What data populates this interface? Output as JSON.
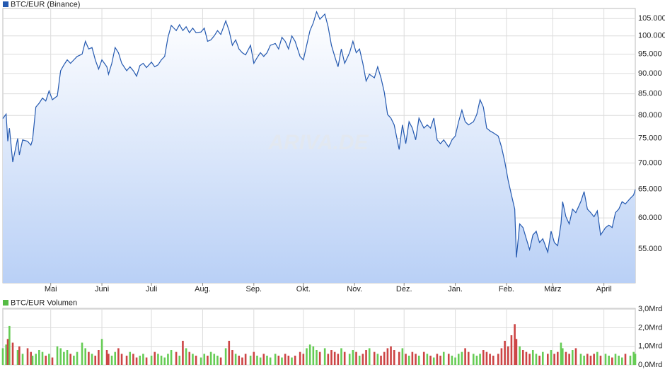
{
  "chart_data": [
    {
      "type": "line",
      "title": "BTC/EUR (Binance)",
      "watermark": "ARIVA.DE",
      "color": "#2459b0",
      "area_color": "#b9d0f6",
      "grid": true,
      "log": true,
      "x": [
        0,
        2,
        3,
        4,
        6,
        9,
        10,
        12,
        15,
        17,
        18,
        20,
        22,
        24,
        26,
        28,
        30,
        33,
        35,
        37,
        39,
        41,
        43,
        45,
        48,
        50,
        52,
        54,
        56,
        58,
        60,
        63,
        64,
        66,
        68,
        70,
        72,
        75,
        77,
        79,
        81,
        83,
        85,
        87,
        90,
        92,
        94,
        96,
        98,
        100,
        102,
        105,
        107,
        109,
        111,
        113,
        115,
        117,
        120,
        122,
        124,
        126,
        128,
        130,
        132,
        135,
        137,
        139,
        141,
        143,
        145,
        147,
        150,
        152,
        154,
        156,
        158,
        160,
        162,
        165,
        167,
        169,
        171,
        173,
        175,
        177,
        180,
        182,
        184,
        186,
        188,
        190,
        192,
        195,
        197,
        199,
        201,
        203,
        205,
        207,
        210,
        212,
        214,
        216,
        218,
        220,
        222,
        225,
        227,
        229,
        231,
        233,
        235,
        237,
        240,
        242,
        244,
        246,
        248,
        250,
        252,
        255,
        257,
        259,
        261,
        263,
        265,
        267,
        270,
        272,
        274,
        276,
        278,
        280,
        282,
        285,
        287,
        289,
        291,
        293,
        295,
        297,
        300,
        302,
        304,
        306,
        308,
        310,
        311,
        313,
        315,
        317,
        319,
        321,
        323,
        325,
        327,
        330,
        332,
        334,
        336,
        338,
        339,
        341,
        343,
        345,
        347,
        350,
        352,
        354,
        356,
        358,
        360,
        362,
        365,
        367,
        369,
        371,
        373,
        375,
        377,
        380,
        382,
        383
      ],
      "values": [
        79300,
        80300,
        74400,
        77200,
        70200,
        75000,
        71600,
        74700,
        74400,
        73600,
        74700,
        81900,
        82800,
        84000,
        83300,
        85700,
        83600,
        84500,
        90700,
        92200,
        93500,
        92600,
        93500,
        94400,
        95000,
        98500,
        96400,
        96800,
        93500,
        91100,
        93500,
        91700,
        89800,
        92600,
        96800,
        95400,
        92600,
        90700,
        91700,
        90700,
        89300,
        92000,
        92600,
        91500,
        92900,
        91700,
        92200,
        93500,
        94400,
        99600,
        103000,
        101500,
        103200,
        101500,
        102600,
        100900,
        102200,
        100900,
        101100,
        102200,
        98500,
        98900,
        100000,
        101500,
        100400,
        104300,
        101500,
        97400,
        98900,
        96400,
        95400,
        94800,
        97400,
        92600,
        94100,
        95400,
        94400,
        95400,
        97400,
        97900,
        96400,
        99600,
        98500,
        96400,
        100000,
        98500,
        94400,
        93500,
        97400,
        101500,
        103700,
        107000,
        104800,
        106300,
        102600,
        97400,
        94400,
        91700,
        96400,
        92600,
        95400,
        98500,
        95400,
        96400,
        92600,
        88100,
        89800,
        88900,
        91700,
        88900,
        85400,
        80200,
        79400,
        77900,
        72700,
        77900,
        73900,
        78600,
        77200,
        74700,
        79400,
        77200,
        77900,
        77200,
        79400,
        74700,
        73900,
        74700,
        73200,
        74700,
        75500,
        78600,
        81200,
        78600,
        77900,
        78600,
        80200,
        83600,
        81900,
        77200,
        76600,
        76200,
        75500,
        73200,
        70200,
        66700,
        64000,
        61500,
        53700,
        59000,
        58400,
        56600,
        54900,
        57200,
        57800,
        56000,
        56600,
        54500,
        57800,
        56000,
        55500,
        59000,
        62800,
        60200,
        59000,
        61500,
        60900,
        62800,
        64600,
        61500,
        60900,
        60200,
        61200,
        57200,
        58400,
        58800,
        58400,
        60900,
        61500,
        62800,
        62400,
        63400,
        64000,
        65000
      ],
      "xlim": [
        0,
        383
      ],
      "xticks": [
        {
          "value": 29,
          "label": "Mai"
        },
        {
          "value": 60,
          "label": "Juni"
        },
        {
          "value": 90,
          "label": "Juli"
        },
        {
          "value": 121,
          "label": "Aug."
        },
        {
          "value": 152,
          "label": "Sep."
        },
        {
          "value": 182,
          "label": "Okt."
        },
        {
          "value": 213,
          "label": "Nov."
        },
        {
          "value": 243,
          "label": "Dez."
        },
        {
          "value": 274,
          "label": "Jan."
        },
        {
          "value": 305,
          "label": "Feb."
        },
        {
          "value": 333,
          "label": "März"
        },
        {
          "value": 364,
          "label": "April"
        }
      ],
      "ylim": [
        50000,
        108000
      ],
      "yticks": [
        {
          "value": 105000,
          "label": "105.000"
        },
        {
          "value": 100000,
          "label": "100.000"
        },
        {
          "value": 95000,
          "label": "95.000"
        },
        {
          "value": 90000,
          "label": "90.000"
        },
        {
          "value": 85000,
          "label": "85.000"
        },
        {
          "value": 80000,
          "label": "80.000"
        },
        {
          "value": 75000,
          "label": "75.000"
        },
        {
          "value": 70000,
          "label": "70.000"
        },
        {
          "value": 65000,
          "label": "65.000"
        },
        {
          "value": 60000,
          "label": "60.000"
        },
        {
          "value": 55000,
          "label": "55.000"
        }
      ]
    },
    {
      "type": "bar",
      "title": "BTC/EUR Volumen",
      "up_color": "#66cc55",
      "down_color": "#cc4444",
      "legend_color": "#55bb44",
      "grid": true,
      "values": [
        0.9,
        1.1,
        1.4,
        2.1,
        1.2,
        0.8,
        1.0,
        0.6,
        0.9,
        0.7,
        0.5,
        0.6,
        0.8,
        0.7,
        0.5,
        0.6,
        0.4,
        1.0,
        0.9,
        0.7,
        0.8,
        0.6,
        0.5,
        0.7,
        1.2,
        0.9,
        0.7,
        0.6,
        0.5,
        0.8,
        1.4,
        0.8,
        0.6,
        0.5,
        0.7,
        0.9,
        0.6,
        0.5,
        0.7,
        0.6,
        0.4,
        0.5,
        0.6,
        0.4,
        0.5,
        0.7,
        0.6,
        0.5,
        0.4,
        0.6,
        0.8,
        0.7,
        0.5,
        1.3,
        0.9,
        0.7,
        0.6,
        0.5,
        0.4,
        0.6,
        0.5,
        0.7,
        0.6,
        0.5,
        0.4,
        0.9,
        1.3,
        0.8,
        0.6,
        0.5,
        0.4,
        0.6,
        0.5,
        0.7,
        0.5,
        0.4,
        0.6,
        0.5,
        0.4,
        0.6,
        0.5,
        0.4,
        0.6,
        0.5,
        0.4,
        0.5,
        0.7,
        0.6,
        0.9,
        1.1,
        1.0,
        0.8,
        0.7,
        0.9,
        0.6,
        0.8,
        0.7,
        0.6,
        0.9,
        0.7,
        0.6,
        0.8,
        0.7,
        0.5,
        0.6,
        0.8,
        0.9,
        0.7,
        0.6,
        0.5,
        0.7,
        0.9,
        1.0,
        0.8,
        0.7,
        0.9,
        0.6,
        0.5,
        0.7,
        0.6,
        0.5,
        0.7,
        0.6,
        0.5,
        0.4,
        0.6,
        0.5,
        0.7,
        0.6,
        0.5,
        0.4,
        0.6,
        0.7,
        0.9,
        0.7,
        0.6,
        0.5,
        0.6,
        0.8,
        0.7,
        0.6,
        0.5,
        0.6,
        0.9,
        1.3,
        1.0,
        1.6,
        2.2,
        1.4,
        1.0,
        0.8,
        0.7,
        0.6,
        0.8,
        0.6,
        0.5,
        0.7,
        0.6,
        0.8,
        0.6,
        0.7,
        1.2,
        0.9,
        0.7,
        0.6,
        0.8,
        0.9,
        0.6,
        0.5,
        0.6,
        0.5,
        0.6,
        0.7,
        0.5,
        0.6,
        0.5,
        0.4,
        0.6,
        0.5,
        0.4,
        0.6,
        0.5,
        0.7,
        0.6
      ],
      "ylim": [
        0,
        3.05
      ],
      "yticks": [
        {
          "value": 3,
          "label": "3,0Mrd"
        },
        {
          "value": 2,
          "label": "2,0Mrd"
        },
        {
          "value": 1,
          "label": "1,0Mrd"
        },
        {
          "value": 0,
          "label": "0,0Mrd"
        }
      ]
    }
  ]
}
